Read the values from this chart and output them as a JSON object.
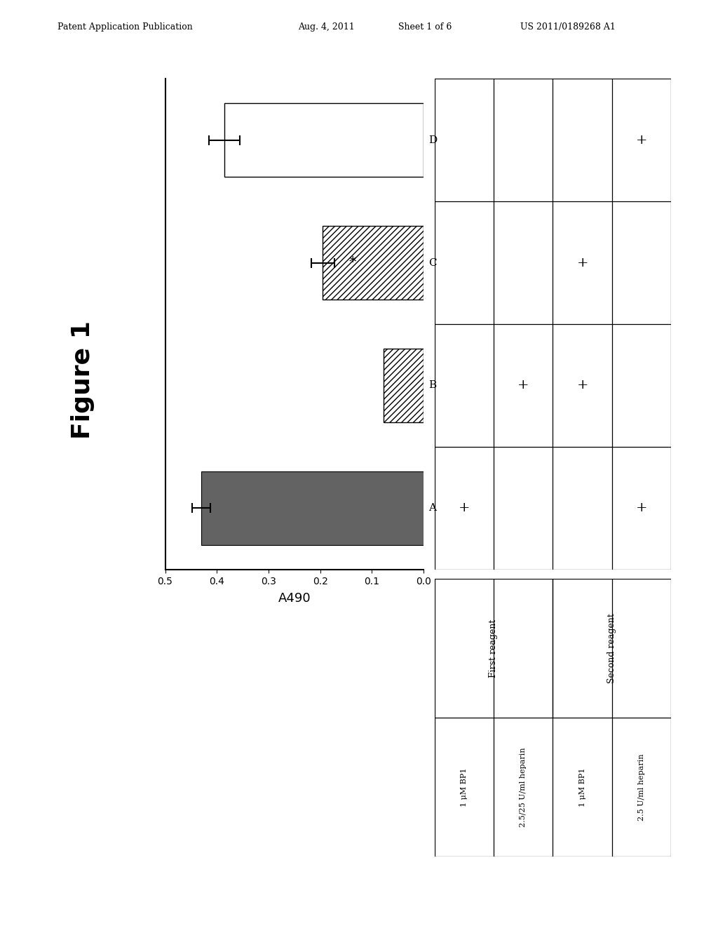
{
  "patent_line1": "Patent Application Publication",
  "patent_line2": "Aug. 4, 2011",
  "patent_line3": "Sheet 1 of 6",
  "patent_line4": "US 2011/0189268 A1",
  "figure_label": "Figure 1",
  "ylabel": "A490",
  "bars": [
    {
      "label": "A",
      "value": 0.43,
      "error": 0.018,
      "style": "dark"
    },
    {
      "label": "B",
      "value": 0.078,
      "error": null,
      "style": "hatch"
    },
    {
      "label": "C",
      "value": 0.195,
      "error": 0.022,
      "style": "hatch",
      "annotation": "*"
    },
    {
      "label": "D",
      "value": 0.385,
      "error": 0.03,
      "style": "white"
    }
  ],
  "xticks": [
    0.5,
    0.4,
    0.3,
    0.2,
    0.1,
    0.0
  ],
  "xtick_labels": [
    "0.5",
    "0.4",
    "0.3",
    "0.2",
    "0.1",
    "0.0"
  ],
  "table_plus": [
    [
      0,
      0
    ],
    [
      1,
      1
    ],
    [
      2,
      1
    ],
    [
      2,
      2
    ],
    [
      3,
      0
    ],
    [
      3,
      3
    ]
  ],
  "table_row_items": [
    "1 μM BP1",
    "2.5/25 U/ml heparin",
    "1 μM BP1",
    "2.5 U/ml heparin"
  ],
  "table_group_labels": [
    "First reagent",
    "Second reagent"
  ],
  "bar_dark_color": "#636363"
}
